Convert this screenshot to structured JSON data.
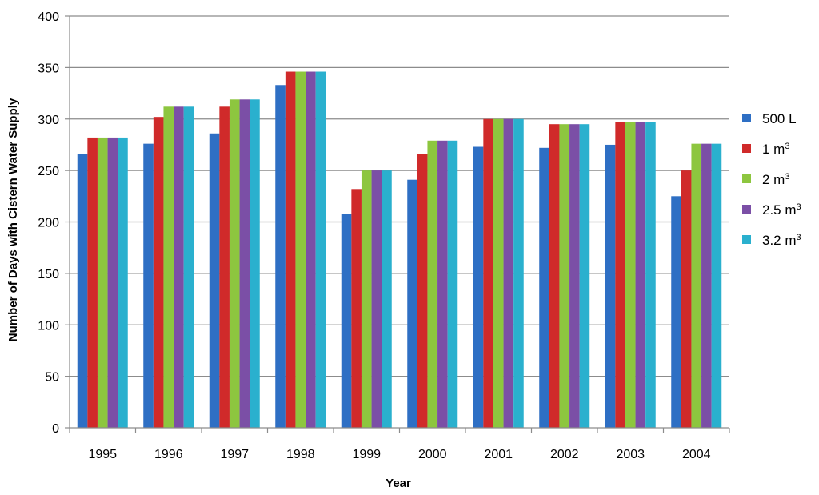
{
  "chart_data": {
    "type": "bar",
    "xlabel": "Year",
    "ylabel": "Number of Days with Cistern Water Supply",
    "ylim": [
      0,
      400
    ],
    "yticks": [
      0,
      50,
      100,
      150,
      200,
      250,
      300,
      350,
      400
    ],
    "grid": true,
    "legend_position": "right",
    "categories": [
      "1995",
      "1996",
      "1997",
      "1998",
      "1999",
      "2000",
      "2001",
      "2002",
      "2003",
      "2004"
    ],
    "series": [
      {
        "name": "500 L",
        "label_base": "500 L",
        "label_sup": "",
        "color": "#2E6FC4",
        "values": [
          266,
          276,
          286,
          333,
          208,
          241,
          273,
          272,
          275,
          225
        ]
      },
      {
        "name": "1 m3",
        "label_base": "1 m",
        "label_sup": "3",
        "color": "#D02A2A",
        "values": [
          282,
          302,
          312,
          346,
          232,
          266,
          300,
          295,
          297,
          250
        ]
      },
      {
        "name": "2 m3",
        "label_base": "2 m",
        "label_sup": "3",
        "color": "#8DC63F",
        "values": [
          282,
          312,
          319,
          346,
          250,
          279,
          300,
          295,
          297,
          276
        ]
      },
      {
        "name": "2.5 m3",
        "label_base": "2.5 m",
        "label_sup": "3",
        "color": "#7B4FA6",
        "values": [
          282,
          312,
          319,
          346,
          250,
          279,
          300,
          295,
          297,
          276
        ]
      },
      {
        "name": "3.2 m3",
        "label_base": "3.2 m",
        "label_sup": "3",
        "color": "#2AB0CE",
        "values": [
          282,
          312,
          319,
          346,
          250,
          279,
          300,
          295,
          297,
          276
        ]
      }
    ]
  }
}
